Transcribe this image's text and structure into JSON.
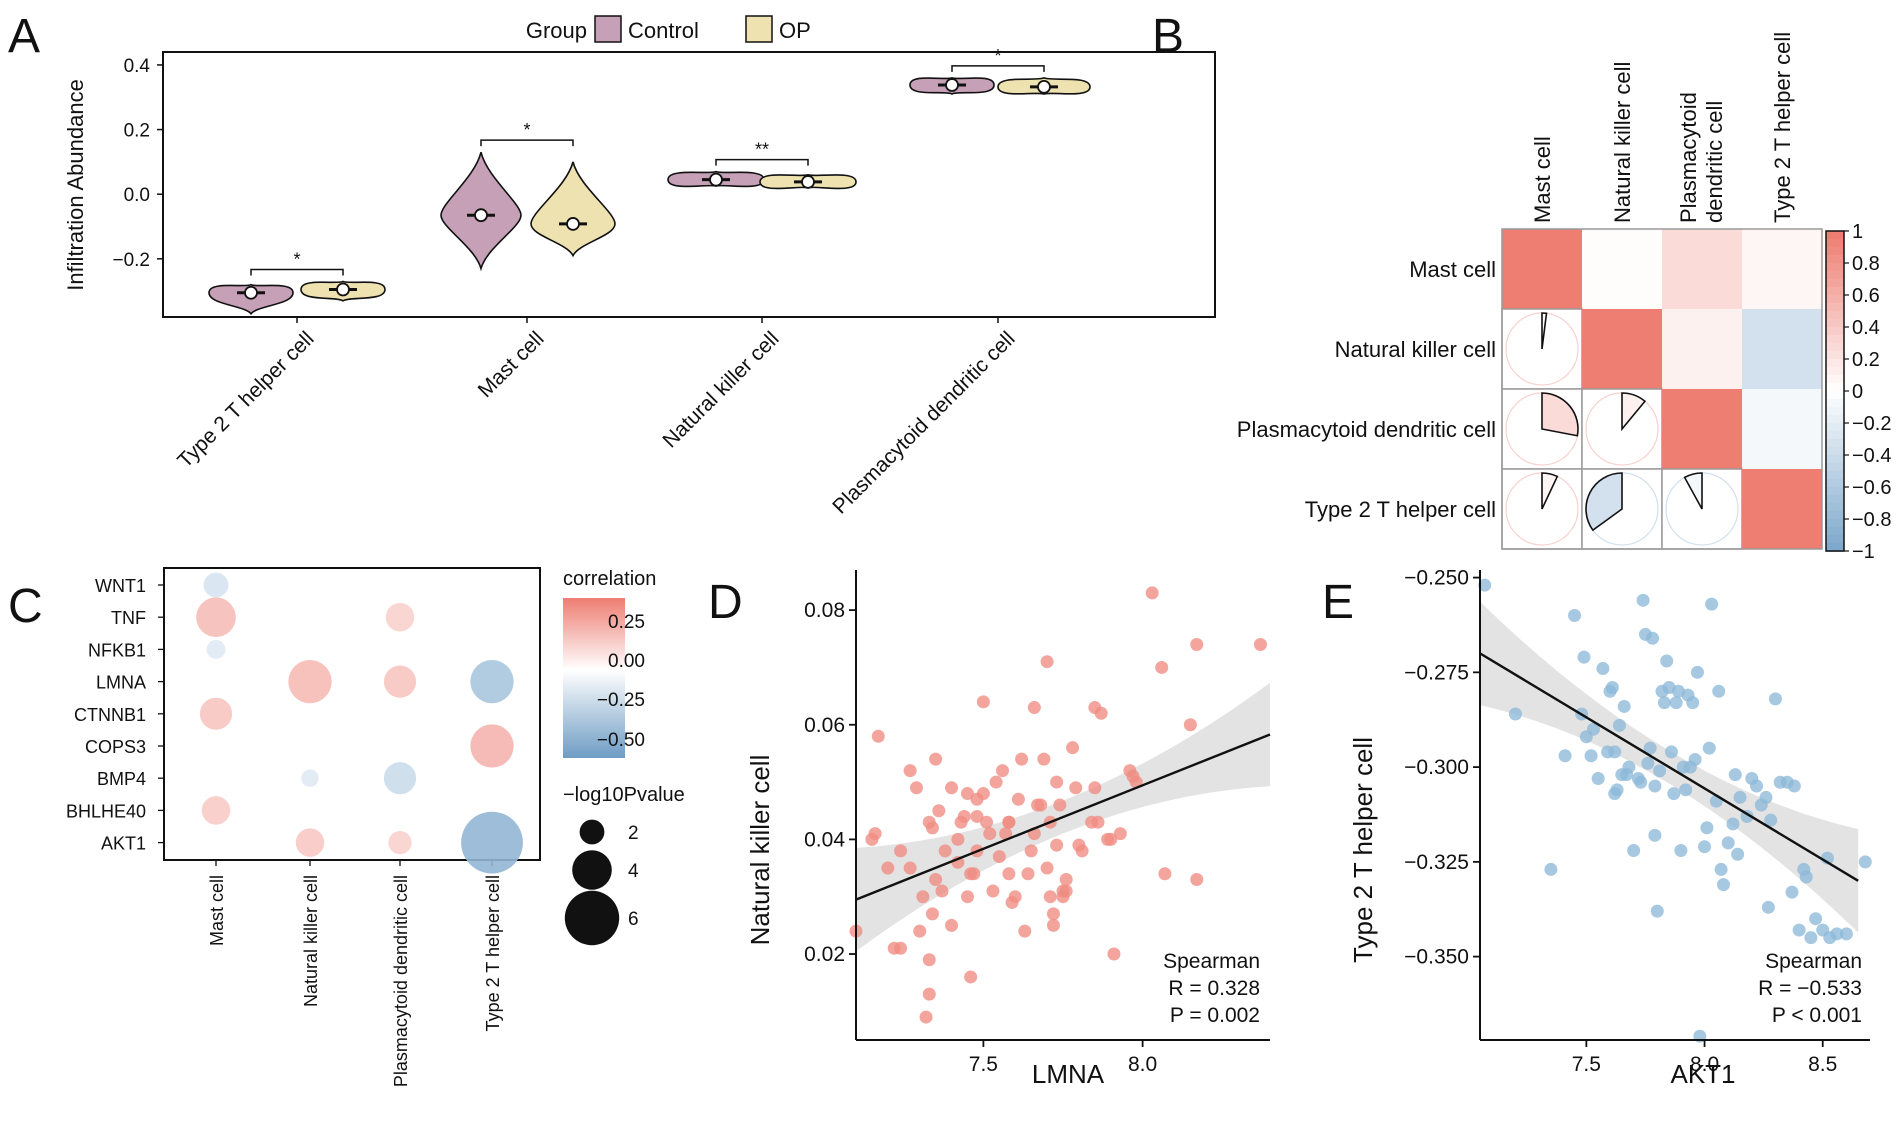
{
  "panels": {
    "A": {
      "label": "A"
    },
    "B": {
      "label": "B"
    },
    "C": {
      "label": "C"
    },
    "D": {
      "label": "D"
    },
    "E": {
      "label": "E"
    }
  },
  "colors": {
    "control": "#C5A0B6",
    "op": "#EEE3B0",
    "pos": "#EE7D72",
    "neg": "#7FA9CC",
    "scatterD": "#F08C82",
    "scatterE": "#8DB8D9",
    "band": "#D9D9D9"
  },
  "chart_data": [
    {
      "id": "A",
      "type": "violin",
      "ylabel": "Infiltration Abundance",
      "legend": {
        "title": "Group",
        "entries": [
          "Control",
          "OP"
        ],
        "position": "top"
      },
      "ylim": [
        -0.38,
        0.44
      ],
      "yticks": [
        -0.2,
        0.0,
        0.2,
        0.4
      ],
      "ytick_labels": [
        "−0.2",
        "0.0",
        "0.2",
        "0.4"
      ],
      "categories": [
        "Type 2 T helper cell",
        "Mast cell",
        "Natural killer cell",
        "Plasmacytoid dendritic cell"
      ],
      "series": [
        {
          "name": "Control",
          "medians": [
            -0.305,
            -0.065,
            0.045,
            0.338
          ],
          "ranges": [
            [
              -0.37,
              -0.28
            ],
            [
              -0.23,
              0.13
            ],
            [
              0.025,
              0.07
            ],
            [
              0.31,
              0.36
            ]
          ]
        },
        {
          "name": "OP",
          "medians": [
            -0.295,
            -0.092,
            0.038,
            0.332
          ],
          "ranges": [
            [
              -0.33,
              -0.27
            ],
            [
              -0.19,
              0.1
            ],
            [
              0.02,
              0.06
            ],
            [
              0.31,
              0.36
            ]
          ]
        }
      ],
      "significance": [
        "*",
        "*",
        "**",
        "*"
      ]
    },
    {
      "id": "B",
      "type": "heatmap",
      "col_labels": [
        "Mast cell",
        "Natural killer cell",
        "Plasmacytoid dendritic cell",
        "Type 2 T helper cell"
      ],
      "row_labels": [
        "Mast cell",
        "Natural killer cell",
        "Plasmacytoid dendritic cell",
        "Type 2 T helper cell"
      ],
      "matrix": [
        [
          1.0,
          0.02,
          0.28,
          0.07
        ],
        [
          0.02,
          1.0,
          0.11,
          -0.35
        ],
        [
          0.28,
          0.11,
          1.0,
          -0.08
        ],
        [
          0.07,
          -0.35,
          -0.08,
          1.0
        ]
      ],
      "colorbar": {
        "range": [
          -1,
          1
        ],
        "ticks": [
          "1",
          "0.8",
          "0.6",
          "0.4",
          "0.2",
          "0",
          "−0.2",
          "−0.4",
          "−0.6",
          "−0.8",
          "−1"
        ]
      }
    },
    {
      "id": "C",
      "type": "scatter",
      "rows": [
        "WNT1",
        "TNF",
        "NFKB1",
        "LMNA",
        "CTNNB1",
        "COPS3",
        "BMP4",
        "BHLHE40",
        "AKT1"
      ],
      "cols": [
        "Mast cell",
        "Natural killer cell",
        "Plasmacytoid dendritic cell",
        "Type 2 T helper cell"
      ],
      "points": [
        {
          "row": "WNT1",
          "col": "Mast cell",
          "r": -0.2,
          "p": 2.0
        },
        {
          "row": "TNF",
          "col": "Mast cell",
          "r": 0.32,
          "p": 4.0
        },
        {
          "row": "NFKB1",
          "col": "Mast cell",
          "r": -0.15,
          "p": 1.2
        },
        {
          "row": "CTNNB1",
          "col": "Mast cell",
          "r": 0.28,
          "p": 3.0
        },
        {
          "row": "BHLHE40",
          "col": "Mast cell",
          "r": 0.25,
          "p": 2.5
        },
        {
          "row": "LMNA",
          "col": "Natural killer cell",
          "r": 0.33,
          "p": 4.5
        },
        {
          "row": "BMP4",
          "col": "Natural killer cell",
          "r": -0.15,
          "p": 1.0
        },
        {
          "row": "AKT1",
          "col": "Natural killer cell",
          "r": 0.26,
          "p": 2.5
        },
        {
          "row": "TNF",
          "col": "Plasmacytoid dendritic cell",
          "r": 0.22,
          "p": 2.5
        },
        {
          "row": "LMNA",
          "col": "Plasmacytoid dendritic cell",
          "r": 0.28,
          "p": 3.0
        },
        {
          "row": "BMP4",
          "col": "Plasmacytoid dendritic cell",
          "r": -0.26,
          "p": 3.0
        },
        {
          "row": "AKT1",
          "col": "Plasmacytoid dendritic cell",
          "r": 0.22,
          "p": 1.8
        },
        {
          "row": "LMNA",
          "col": "Type 2 T helper cell",
          "r": -0.42,
          "p": 4.5
        },
        {
          "row": "COPS3",
          "col": "Type 2 T helper cell",
          "r": 0.36,
          "p": 4.5
        },
        {
          "row": "AKT1",
          "col": "Type 2 T helper cell",
          "r": -0.53,
          "p": 7.0
        }
      ],
      "legend_corr": {
        "title": "correlation",
        "ticks": [
          "0.25",
          "0.00",
          "−0.25",
          "−0.50"
        ]
      },
      "legend_size": {
        "title": "−log10Pvalue",
        "values": [
          "2",
          "4",
          "6"
        ]
      }
    },
    {
      "id": "D",
      "type": "scatter",
      "xlabel": "LMNA",
      "ylabel": "Natural killer cell",
      "xlim": [
        7.1,
        8.4
      ],
      "ylim": [
        0.005,
        0.087
      ],
      "xticks": [
        "7.5",
        "8.0"
      ],
      "yticks": [
        "0.02",
        "0.04",
        "0.06",
        "0.08"
      ],
      "fit": {
        "x": [
          7.1,
          8.4
        ],
        "y": [
          0.0295,
          0.0583
        ]
      },
      "stats": {
        "method": "Spearman",
        "r_label": "R = 0.328",
        "p_label": "P = 0.002"
      },
      "points": [
        [
          7.1,
          0.024
        ],
        [
          7.16,
          0.041
        ],
        [
          7.17,
          0.058
        ],
        [
          7.15,
          0.04
        ],
        [
          7.2,
          0.035
        ],
        [
          7.22,
          0.021
        ],
        [
          7.24,
          0.021
        ],
        [
          7.24,
          0.038
        ],
        [
          7.27,
          0.035
        ],
        [
          7.27,
          0.052
        ],
        [
          7.29,
          0.049
        ],
        [
          7.3,
          0.024
        ],
        [
          7.31,
          0.03
        ],
        [
          7.32,
          0.009
        ],
        [
          7.33,
          0.043
        ],
        [
          7.33,
          0.013
        ],
        [
          7.33,
          0.019
        ],
        [
          7.34,
          0.027
        ],
        [
          7.34,
          0.042
        ],
        [
          7.35,
          0.033
        ],
        [
          7.35,
          0.054
        ],
        [
          7.36,
          0.045
        ],
        [
          7.37,
          0.031
        ],
        [
          7.38,
          0.038
        ],
        [
          7.4,
          0.049
        ],
        [
          7.4,
          0.025
        ],
        [
          7.42,
          0.036
        ],
        [
          7.42,
          0.04
        ],
        [
          7.43,
          0.043
        ],
        [
          7.44,
          0.044
        ],
        [
          7.45,
          0.048
        ],
        [
          7.45,
          0.03
        ],
        [
          7.46,
          0.034
        ],
        [
          7.46,
          0.016
        ],
        [
          7.47,
          0.034
        ],
        [
          7.48,
          0.038
        ],
        [
          7.48,
          0.047
        ],
        [
          7.48,
          0.044
        ],
        [
          7.5,
          0.064
        ],
        [
          7.5,
          0.048
        ],
        [
          7.51,
          0.043
        ],
        [
          7.52,
          0.041
        ],
        [
          7.53,
          0.031
        ],
        [
          7.54,
          0.05
        ],
        [
          7.55,
          0.037
        ],
        [
          7.56,
          0.052
        ],
        [
          7.57,
          0.041
        ],
        [
          7.58,
          0.043
        ],
        [
          7.58,
          0.043
        ],
        [
          7.58,
          0.034
        ],
        [
          7.59,
          0.029
        ],
        [
          7.6,
          0.03
        ],
        [
          7.61,
          0.047
        ],
        [
          7.62,
          0.054
        ],
        [
          7.63,
          0.024
        ],
        [
          7.64,
          0.034
        ],
        [
          7.65,
          0.038
        ],
        [
          7.66,
          0.041
        ],
        [
          7.66,
          0.063
        ],
        [
          7.67,
          0.046
        ],
        [
          7.68,
          0.046
        ],
        [
          7.69,
          0.054
        ],
        [
          7.7,
          0.071
        ],
        [
          7.7,
          0.035
        ],
        [
          7.71,
          0.03
        ],
        [
          7.71,
          0.043
        ],
        [
          7.72,
          0.025
        ],
        [
          7.72,
          0.027
        ],
        [
          7.73,
          0.039
        ],
        [
          7.73,
          0.05
        ],
        [
          7.74,
          0.046
        ],
        [
          7.75,
          0.031
        ],
        [
          7.75,
          0.03
        ],
        [
          7.76,
          0.031
        ],
        [
          7.76,
          0.033
        ],
        [
          7.78,
          0.056
        ],
        [
          7.79,
          0.049
        ],
        [
          7.8,
          0.039
        ],
        [
          7.81,
          0.038
        ],
        [
          7.84,
          0.043
        ],
        [
          7.85,
          0.049
        ],
        [
          7.85,
          0.063
        ],
        [
          7.86,
          0.043
        ],
        [
          7.87,
          0.062
        ],
        [
          7.89,
          0.04
        ],
        [
          7.9,
          0.04
        ],
        [
          7.91,
          0.02
        ],
        [
          7.93,
          0.041
        ],
        [
          7.96,
          0.052
        ],
        [
          7.97,
          0.051
        ],
        [
          7.98,
          0.05
        ],
        [
          8.03,
          0.083
        ],
        [
          8.06,
          0.07
        ],
        [
          8.07,
          0.034
        ],
        [
          8.15,
          0.06
        ],
        [
          8.17,
          0.074
        ],
        [
          8.17,
          0.033
        ],
        [
          8.37,
          0.074
        ]
      ]
    },
    {
      "id": "E",
      "type": "scatter",
      "xlabel": "AKT1",
      "ylabel": "Type 2 T helper cell",
      "xlim": [
        7.05,
        8.7
      ],
      "ylim": [
        -0.372,
        -0.248
      ],
      "xticks": [
        "7.5",
        "8.0",
        "8.5"
      ],
      "yticks": [
        "−0.250",
        "−0.275",
        "−0.300",
        "−0.325",
        "−0.350"
      ],
      "fit": {
        "x": [
          7.05,
          8.65
        ],
        "y": [
          -0.27,
          -0.33
        ]
      },
      "stats": {
        "method": "Spearman",
        "r_label": "R = −0.533",
        "p_label": "P < 0.001"
      },
      "points": [
        [
          7.07,
          -0.252
        ],
        [
          7.2,
          -0.286
        ],
        [
          7.35,
          -0.327
        ],
        [
          7.41,
          -0.297
        ],
        [
          7.45,
          -0.26
        ],
        [
          7.48,
          -0.286
        ],
        [
          7.49,
          -0.271
        ],
        [
          7.5,
          -0.292
        ],
        [
          7.52,
          -0.297
        ],
        [
          7.53,
          -0.29
        ],
        [
          7.55,
          -0.303
        ],
        [
          7.57,
          -0.274
        ],
        [
          7.59,
          -0.296
        ],
        [
          7.6,
          -0.28
        ],
        [
          7.61,
          -0.279
        ],
        [
          7.62,
          -0.307
        ],
        [
          7.62,
          -0.296
        ],
        [
          7.63,
          -0.306
        ],
        [
          7.64,
          -0.289
        ],
        [
          7.65,
          -0.302
        ],
        [
          7.66,
          -0.284
        ],
        [
          7.67,
          -0.302
        ],
        [
          7.68,
          -0.3
        ],
        [
          7.7,
          -0.322
        ],
        [
          7.72,
          -0.303
        ],
        [
          7.73,
          -0.304
        ],
        [
          7.74,
          -0.256
        ],
        [
          7.75,
          -0.265
        ],
        [
          7.76,
          -0.299
        ],
        [
          7.77,
          -0.295
        ],
        [
          7.78,
          -0.266
        ],
        [
          7.79,
          -0.305
        ],
        [
          7.79,
          -0.318
        ],
        [
          7.8,
          -0.338
        ],
        [
          7.81,
          -0.301
        ],
        [
          7.82,
          -0.28
        ],
        [
          7.83,
          -0.283
        ],
        [
          7.84,
          -0.272
        ],
        [
          7.85,
          -0.279
        ],
        [
          7.86,
          -0.296
        ],
        [
          7.87,
          -0.307
        ],
        [
          7.88,
          -0.283
        ],
        [
          7.89,
          -0.28
        ],
        [
          7.9,
          -0.322
        ],
        [
          7.91,
          -0.3
        ],
        [
          7.92,
          -0.306
        ],
        [
          7.93,
          -0.281
        ],
        [
          7.94,
          -0.3
        ],
        [
          7.95,
          -0.283
        ],
        [
          7.96,
          -0.298
        ],
        [
          7.97,
          -0.275
        ],
        [
          7.98,
          -0.371
        ],
        [
          8.0,
          -0.321
        ],
        [
          8.01,
          -0.316
        ],
        [
          8.02,
          -0.295
        ],
        [
          8.03,
          -0.257
        ],
        [
          8.05,
          -0.309
        ],
        [
          8.06,
          -0.28
        ],
        [
          8.07,
          -0.327
        ],
        [
          8.08,
          -0.331
        ],
        [
          8.1,
          -0.32
        ],
        [
          8.12,
          -0.315
        ],
        [
          8.13,
          -0.302
        ],
        [
          8.14,
          -0.323
        ],
        [
          8.15,
          -0.308
        ],
        [
          8.18,
          -0.313
        ],
        [
          8.2,
          -0.303
        ],
        [
          8.22,
          -0.305
        ],
        [
          8.24,
          -0.31
        ],
        [
          8.26,
          -0.308
        ],
        [
          8.27,
          -0.337
        ],
        [
          8.28,
          -0.314
        ],
        [
          8.3,
          -0.282
        ],
        [
          8.32,
          -0.304
        ],
        [
          8.35,
          -0.304
        ],
        [
          8.37,
          -0.333
        ],
        [
          8.38,
          -0.305
        ],
        [
          8.4,
          -0.343
        ],
        [
          8.42,
          -0.327
        ],
        [
          8.43,
          -0.329
        ],
        [
          8.45,
          -0.345
        ],
        [
          8.47,
          -0.34
        ],
        [
          8.5,
          -0.343
        ],
        [
          8.52,
          -0.324
        ],
        [
          8.53,
          -0.345
        ],
        [
          8.56,
          -0.344
        ],
        [
          8.6,
          -0.344
        ],
        [
          8.68,
          -0.325
        ]
      ]
    }
  ]
}
